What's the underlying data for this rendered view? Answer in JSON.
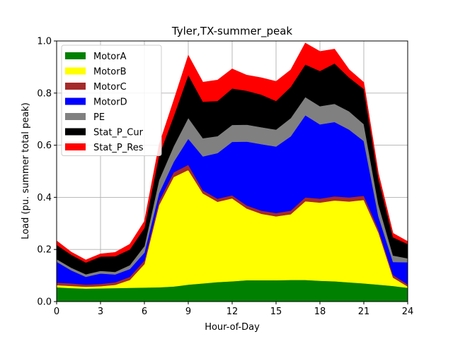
{
  "chart_data": {
    "type": "area",
    "stacked": true,
    "title": "Tyler,TX-summer_peak",
    "xlabel": "Hour-of-Day",
    "ylabel": "Load (pu. summer total peak)",
    "xlim": [
      0,
      24
    ],
    "ylim": [
      0,
      1.0
    ],
    "xticks": [
      0,
      3,
      6,
      9,
      12,
      15,
      18,
      21,
      24
    ],
    "yticks": [
      0.0,
      0.2,
      0.4,
      0.6,
      0.8,
      1.0
    ],
    "xtick_labels": [
      "0",
      "3",
      "6",
      "9",
      "12",
      "15",
      "18",
      "21",
      "24"
    ],
    "ytick_labels": [
      "0.0",
      "0.2",
      "0.4",
      "0.6",
      "0.8",
      "1.0"
    ],
    "grid": true,
    "legend_position": "top-left",
    "x": [
      0,
      1,
      2,
      3,
      4,
      5,
      6,
      7,
      8,
      9,
      10,
      11,
      12,
      13,
      14,
      15,
      16,
      17,
      18,
      19,
      20,
      21,
      22,
      23,
      24
    ],
    "series": [
      {
        "name": "MotorA",
        "color": "#008000",
        "values": [
          0.055,
          0.052,
          0.05,
          0.051,
          0.052,
          0.053,
          0.054,
          0.055,
          0.058,
          0.065,
          0.07,
          0.075,
          0.078,
          0.082,
          0.082,
          0.082,
          0.083,
          0.083,
          0.08,
          0.078,
          0.074,
          0.07,
          0.065,
          0.06,
          0.053
        ]
      },
      {
        "name": "MotorB",
        "color": "#ffff00",
        "values": [
          0.008,
          0.008,
          0.007,
          0.008,
          0.012,
          0.03,
          0.09,
          0.315,
          0.42,
          0.44,
          0.345,
          0.308,
          0.318,
          0.275,
          0.255,
          0.245,
          0.252,
          0.302,
          0.3,
          0.31,
          0.31,
          0.32,
          0.2,
          0.032,
          0.005
        ]
      },
      {
        "name": "MotorC",
        "color": "#a52a2a",
        "values": [
          0.01,
          0.01,
          0.008,
          0.009,
          0.01,
          0.012,
          0.014,
          0.016,
          0.018,
          0.02,
          0.012,
          0.012,
          0.012,
          0.012,
          0.012,
          0.013,
          0.014,
          0.015,
          0.015,
          0.016,
          0.016,
          0.016,
          0.012,
          0.01,
          0.008
        ]
      },
      {
        "name": "MotorD",
        "color": "#0000ff",
        "values": [
          0.08,
          0.05,
          0.03,
          0.04,
          0.03,
          0.03,
          0.03,
          0.03,
          0.04,
          0.1,
          0.13,
          0.175,
          0.205,
          0.245,
          0.255,
          0.255,
          0.285,
          0.315,
          0.285,
          0.285,
          0.26,
          0.21,
          0.05,
          0.05,
          0.085
        ]
      },
      {
        "name": "PE",
        "color": "#808080",
        "values": [
          0.01,
          0.01,
          0.01,
          0.01,
          0.01,
          0.015,
          0.025,
          0.05,
          0.06,
          0.08,
          0.07,
          0.065,
          0.065,
          0.065,
          0.065,
          0.065,
          0.07,
          0.07,
          0.07,
          0.07,
          0.07,
          0.065,
          0.045,
          0.025,
          0.015
        ]
      },
      {
        "name": "Stat_P_Cur",
        "color": "#000000",
        "values": [
          0.055,
          0.05,
          0.045,
          0.055,
          0.06,
          0.06,
          0.07,
          0.095,
          0.115,
          0.165,
          0.14,
          0.135,
          0.14,
          0.13,
          0.125,
          0.11,
          0.12,
          0.125,
          0.135,
          0.155,
          0.13,
          0.135,
          0.1,
          0.07,
          0.055
        ]
      },
      {
        "name": "Stat_P_Res",
        "color": "#ff0000",
        "values": [
          0.015,
          0.01,
          0.01,
          0.01,
          0.015,
          0.02,
          0.025,
          0.04,
          0.06,
          0.075,
          0.075,
          0.08,
          0.075,
          0.06,
          0.065,
          0.075,
          0.065,
          0.082,
          0.075,
          0.055,
          0.03,
          0.025,
          0.02,
          0.015,
          0.01
        ]
      }
    ]
  }
}
